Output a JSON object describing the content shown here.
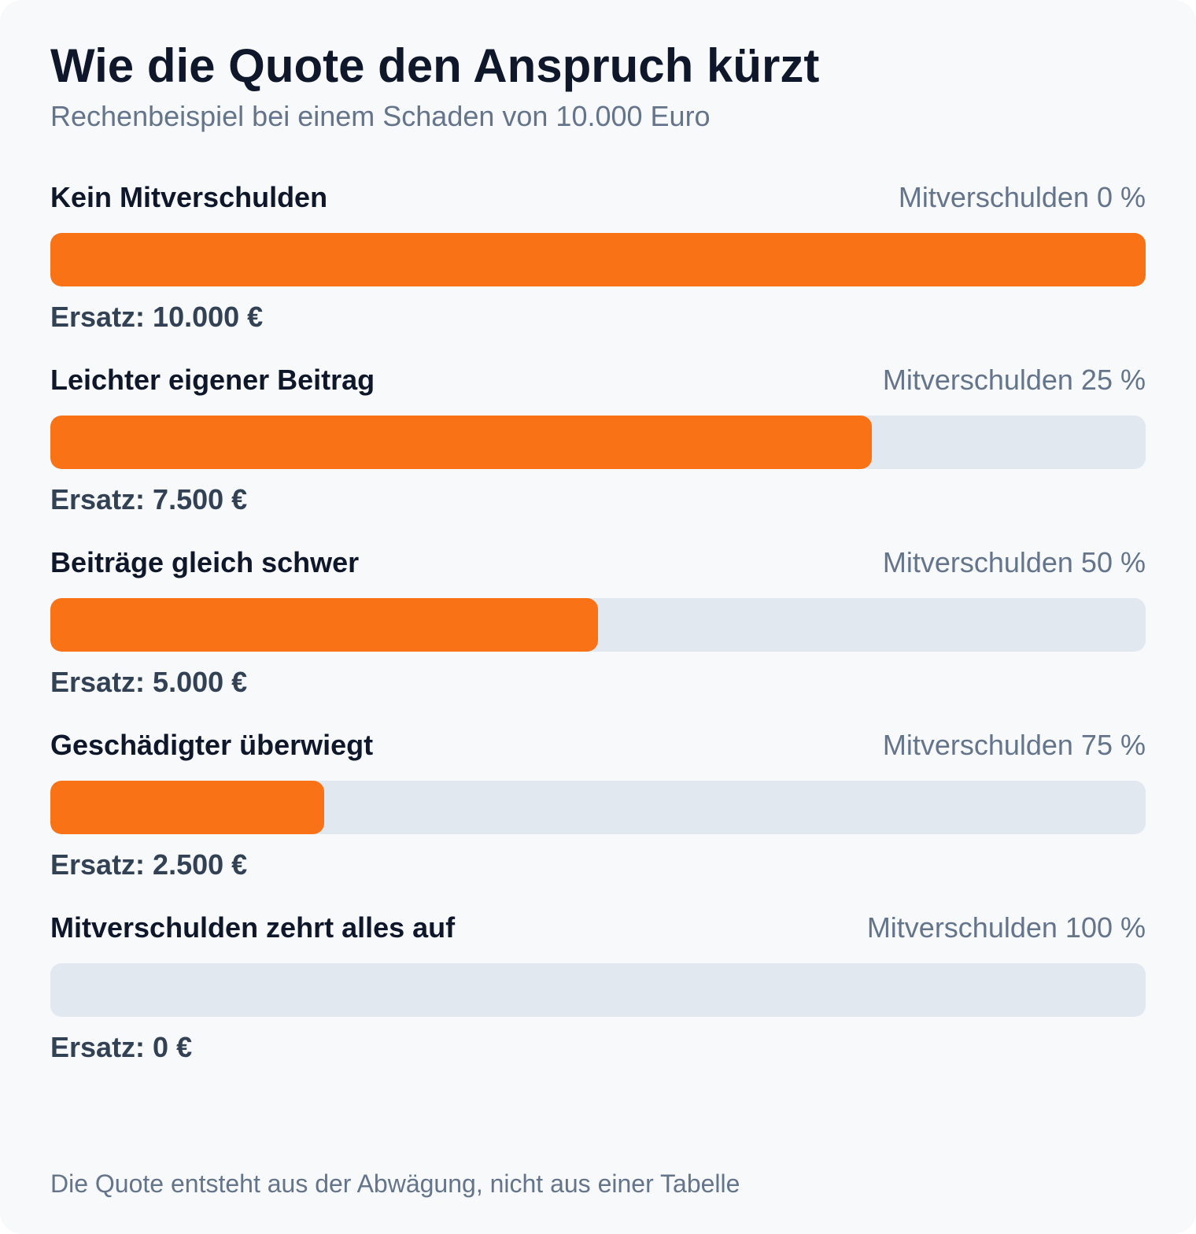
{
  "title": "Wie die Quote den Anspruch kürzt",
  "subtitle": "Rechenbeispiel bei einem Schaden von 10.000 Euro",
  "footnote": "Die Quote entsteht aus der Abwägung, nicht aus einer Tabelle",
  "colors": {
    "bar": "#f97316",
    "track": "#e2e8f0",
    "background": "#f7f9fb"
  },
  "rows": [
    {
      "label": "Kein Mitverschulden",
      "quota_text": "Mitverschulden 0 %",
      "value_text": "Ersatz: 10.000 €"
    },
    {
      "label": "Leichter eigener Beitrag",
      "quota_text": "Mitverschulden 25 %",
      "value_text": "Ersatz: 7.500 €"
    },
    {
      "label": "Beiträge gleich schwer",
      "quota_text": "Mitverschulden 50 %",
      "value_text": "Ersatz: 5.000 €"
    },
    {
      "label": "Geschädigter überwiegt",
      "quota_text": "Mitverschulden 75 %",
      "value_text": "Ersatz: 2.500 €"
    },
    {
      "label": "Mitverschulden zehrt alles auf",
      "quota_text": "Mitverschulden 100 %",
      "value_text": "Ersatz: 0 €"
    }
  ],
  "chart_data": {
    "type": "bar",
    "orientation": "horizontal",
    "title": "Wie die Quote den Anspruch kürzt",
    "subtitle": "Rechenbeispiel bei einem Schaden von 10.000 Euro",
    "categories": [
      "Kein Mitverschulden",
      "Leichter eigener Beitrag",
      "Beiträge gleich schwer",
      "Geschädigter überwiegt",
      "Mitverschulden zehrt alles auf"
    ],
    "mitverschulden_percent": [
      0,
      25,
      50,
      75,
      100
    ],
    "values": [
      10000,
      7500,
      5000,
      2500,
      0
    ],
    "xlim": [
      0,
      10000
    ],
    "grid": false,
    "legend": "none"
  }
}
